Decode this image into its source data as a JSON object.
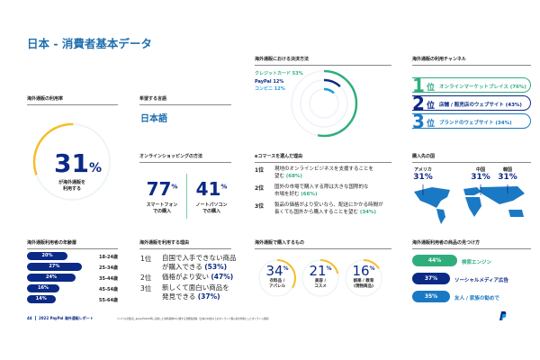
{
  "title": "日本 - 消費者基本データ",
  "usage": {
    "header": "海外通販の利用率",
    "value": "31",
    "unit": "%",
    "label1": "が海外通販を",
    "label2": "利用する",
    "fraction": 0.31
  },
  "language": {
    "header": "希望する言語",
    "value": "日本語"
  },
  "shopping": {
    "header": "オンラインショッピングの方法",
    "items": [
      {
        "value": "77",
        "unit": "%",
        "l1": "スマートフォン",
        "l2": "での購入"
      },
      {
        "value": "41",
        "unit": "%",
        "l1": "ノートパソコン",
        "l2": "での購入"
      }
    ]
  },
  "payment": {
    "header": "海外通販における決済方法",
    "items": [
      {
        "label": "クレジットカード 53%",
        "value": 53,
        "color": "#2fae7c"
      },
      {
        "label": "PayPal 12%",
        "value": 12,
        "color": "#0b2a86"
      },
      {
        "label": "コンビニ 12%",
        "value": 12,
        "color": "#1a9be0"
      }
    ]
  },
  "channels": {
    "header": "海外通販の利用チャンネル",
    "items": [
      {
        "rank": "1",
        "suffix": "位",
        "label": "オンラインマーケットプレイス (76%)",
        "color": "#2fae7c"
      },
      {
        "rank": "2",
        "suffix": "位",
        "label": "店舗 / 販売店のウェブサイト (43%)",
        "color": "#0b2a86"
      },
      {
        "rank": "3",
        "suffix": "位",
        "label": "ブランドのウェブサイト (34%)",
        "color": "#1a79c4"
      }
    ]
  },
  "reasons_ec": {
    "header": "eコマースを選んだ理由",
    "items": [
      {
        "rank": "1位",
        "l1": "現地のオンラインビジネスを支援することを",
        "l2": "望む",
        "pct": "(68%)"
      },
      {
        "rank": "2位",
        "l1": "国外の市場で購入する際は大きな国際的な",
        "l2": "市場を好む",
        "pct": "(66%)"
      },
      {
        "rank": "3位",
        "l1": "製品の価格がより安いなら、配送にかかる時間が",
        "l2": "長くても国外から購入することを望む",
        "pct": "(34%)"
      }
    ]
  },
  "countries": {
    "header": "購入先の国",
    "items": [
      {
        "name": "アメリカ",
        "value": "31%"
      },
      {
        "name": "中国",
        "value": "31%"
      },
      {
        "name": "韓国",
        "value": "31%"
      }
    ]
  },
  "age": {
    "header": "海外通販利用者の年齢層",
    "items": [
      {
        "value": "20%",
        "pct": 20,
        "label": "18-24歳"
      },
      {
        "value": "27%",
        "pct": 27,
        "label": "25-34歳"
      },
      {
        "value": "24%",
        "pct": 24,
        "label": "35-44歳"
      },
      {
        "value": "16%",
        "pct": 16,
        "label": "45-54歳"
      },
      {
        "value": "14%",
        "pct": 14,
        "label": "55-64歳"
      }
    ]
  },
  "reasons_use": {
    "header": "海外通販を利用する理由",
    "items": [
      {
        "rank": "1位",
        "l1": "自国で入手できない商品",
        "l2": "が購入できる",
        "pct": "(53%)"
      },
      {
        "rank": "2位",
        "l1": "価格がより安い",
        "l2": "",
        "pct": "(47%)"
      },
      {
        "rank": "3位",
        "l1": "新しくて面白い商品を",
        "l2": "発見できる",
        "pct": "(37%)"
      }
    ]
  },
  "products": {
    "header": "海外通販で購入するもの",
    "items": [
      {
        "value": "34",
        "unit": "%",
        "l1": "衣料品 /",
        "l2": "アパレル",
        "fraction": 0.34
      },
      {
        "value": "21",
        "unit": "%",
        "l1": "美容 /",
        "l2": "コスメ",
        "fraction": 0.21
      },
      {
        "value": "16",
        "unit": "%",
        "l1": "娯楽 / 教育",
        "l2": "(現物商品)",
        "fraction": 0.16
      }
    ]
  },
  "discovery": {
    "header": "海外通販利用者の商品の見つけ方",
    "items": [
      {
        "value": "44%",
        "label": "検索エンジン",
        "color": "#2fae7c"
      },
      {
        "value": "37%",
        "label": "ソーシャルメディア広告",
        "color": "#0b2a86"
      },
      {
        "value": "35%",
        "label": "友人 / 家族の勧めで",
        "color": "#1a79c4"
      }
    ]
  },
  "footer": {
    "page": "44",
    "report": "2022 PayPal 海外通販レポート",
    "note": "ペイパルが委託しIpsosが2022年に実施した海外越境ECに関する消費者調査（日本の18歳以上のオンライン購入者を対象としたオンライン調査）"
  },
  "accent": "#1f6fae"
}
